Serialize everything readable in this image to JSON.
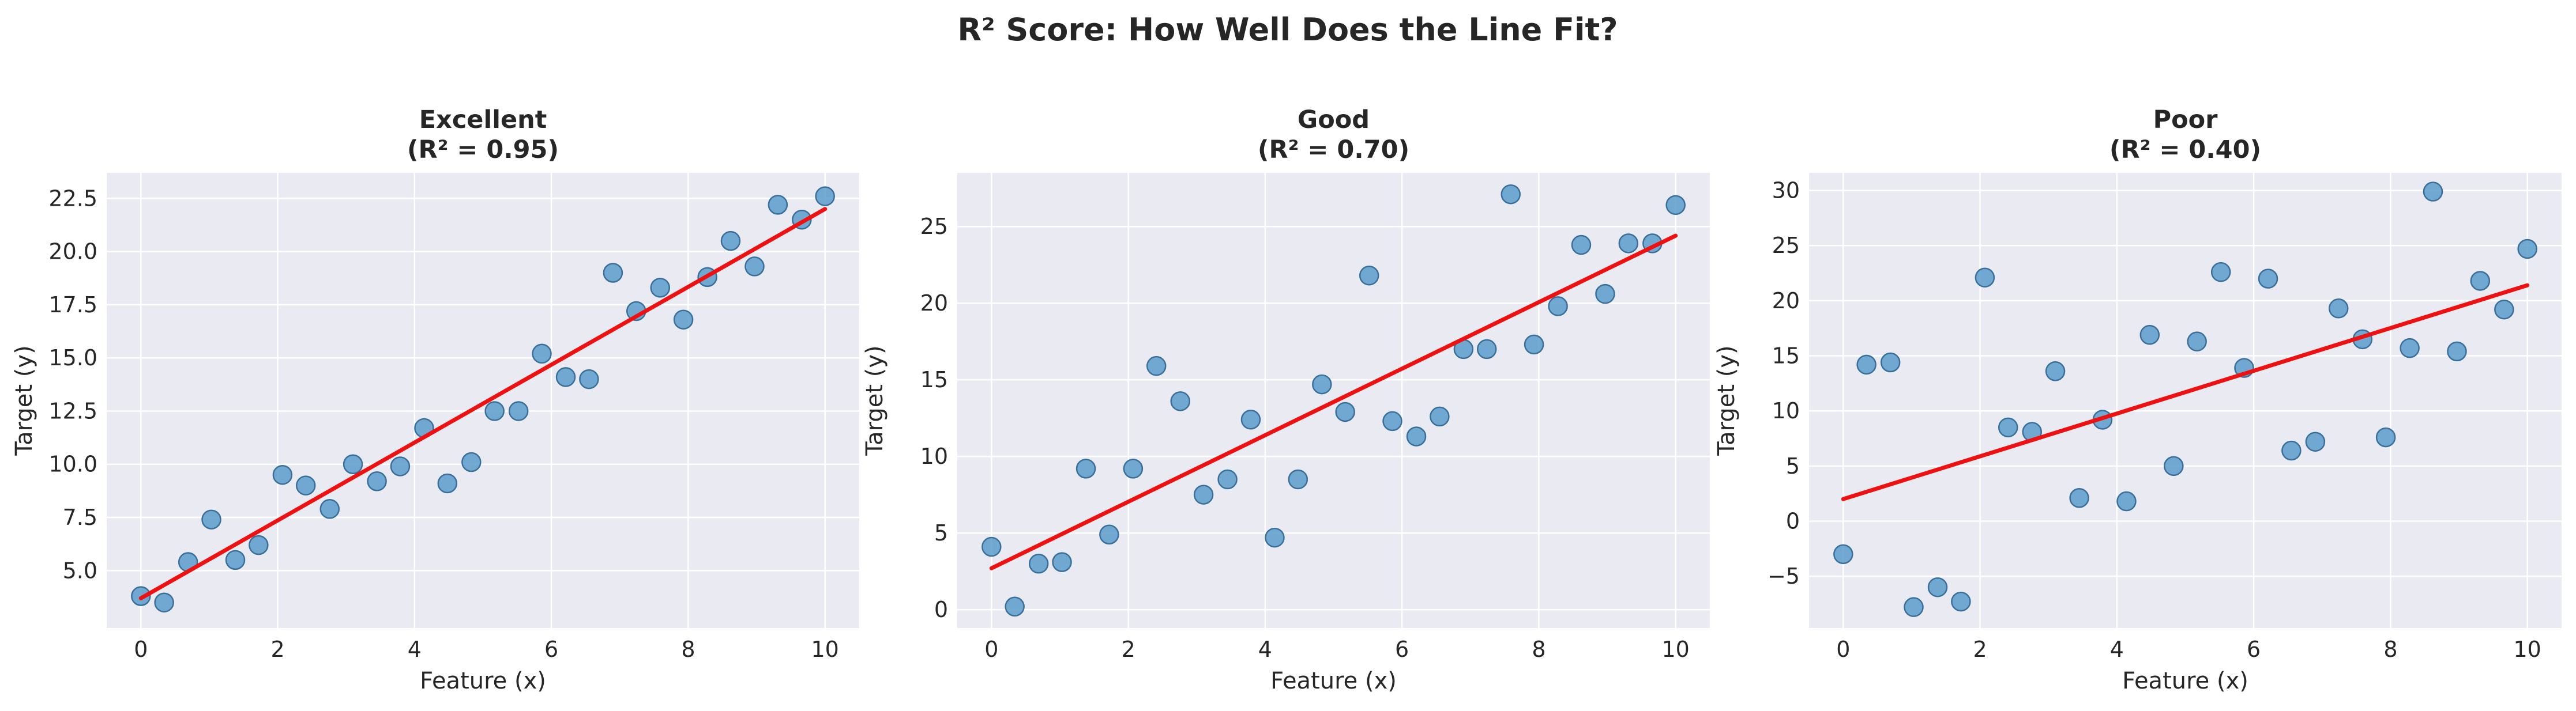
{
  "figure": {
    "suptitle": "R² Score: How Well Does the Line Fit?",
    "colors": {
      "point": "#5b9ccb",
      "fit_line": "#ee1111",
      "plot_bg": "#eaeaf2"
    }
  },
  "chart_data": [
    {
      "type": "scatter",
      "title_line1": "Excellent",
      "title_line2": "(R² = 0.95)",
      "xlabel": "Feature (x)",
      "ylabel": "Target (y)",
      "xlim": [
        -0.5,
        10.5
      ],
      "ylim": [
        2.3,
        23.7
      ],
      "xticks": [
        0,
        2,
        4,
        6,
        8,
        10
      ],
      "yticks": [
        5.0,
        7.5,
        10.0,
        12.5,
        15.0,
        17.5,
        20.0,
        22.5
      ],
      "ytick_labels": [
        "5.0",
        "7.5",
        "10.0",
        "12.5",
        "15.0",
        "17.5",
        "20.0",
        "22.5"
      ],
      "grid": true,
      "points": {
        "x": [
          0,
          0.34,
          0.69,
          1.03,
          1.38,
          1.72,
          2.07,
          2.41,
          2.76,
          3.1,
          3.45,
          3.79,
          4.14,
          4.48,
          4.83,
          5.17,
          5.52,
          5.86,
          6.21,
          6.55,
          6.9,
          7.24,
          7.59,
          7.93,
          8.28,
          8.62,
          8.97,
          9.31,
          9.66,
          10.0
        ],
        "y": [
          3.8,
          3.5,
          5.4,
          7.4,
          5.5,
          6.2,
          9.5,
          9.0,
          7.9,
          10.0,
          9.2,
          9.9,
          11.7,
          9.1,
          10.1,
          12.5,
          12.5,
          15.2,
          14.1,
          14.0,
          19.0,
          17.2,
          18.3,
          16.8,
          18.8,
          20.5,
          19.3,
          22.2,
          21.5,
          22.6
        ]
      },
      "fit_line": {
        "x": [
          0,
          10
        ],
        "y": [
          3.7,
          22.0
        ]
      }
    },
    {
      "type": "scatter",
      "title_line1": "Good",
      "title_line2": "(R² = 0.70)",
      "xlabel": "Feature (x)",
      "ylabel": "Target (y)",
      "xlim": [
        -0.5,
        10.5
      ],
      "ylim": [
        -1.2,
        28.5
      ],
      "xticks": [
        0,
        2,
        4,
        6,
        8,
        10
      ],
      "yticks": [
        0,
        5,
        10,
        15,
        20,
        25
      ],
      "ytick_labels": [
        "0",
        "5",
        "10",
        "15",
        "20",
        "25"
      ],
      "grid": true,
      "points": {
        "x": [
          0,
          0.34,
          0.69,
          1.03,
          1.38,
          1.72,
          2.07,
          2.41,
          2.76,
          3.1,
          3.45,
          3.79,
          4.14,
          4.48,
          4.83,
          5.17,
          5.52,
          5.86,
          6.21,
          6.55,
          6.9,
          7.24,
          7.59,
          7.93,
          8.28,
          8.62,
          8.97,
          9.31,
          9.66,
          10.0
        ],
        "y": [
          4.1,
          0.2,
          3.0,
          3.1,
          9.2,
          4.9,
          9.2,
          15.9,
          13.6,
          7.5,
          8.5,
          12.4,
          4.7,
          8.5,
          14.7,
          12.9,
          21.8,
          12.3,
          11.3,
          12.6,
          17.0,
          17.0,
          27.1,
          17.3,
          19.8,
          23.8,
          20.6,
          23.9,
          23.9,
          26.4
        ]
      },
      "fit_line": {
        "x": [
          0,
          10
        ],
        "y": [
          2.7,
          24.4
        ]
      }
    },
    {
      "type": "scatter",
      "title_line1": "Poor",
      "title_line2": "(R² = 0.40)",
      "xlabel": "Feature (x)",
      "ylabel": "Target (y)",
      "xlim": [
        -0.5,
        10.5
      ],
      "ylim": [
        -9.7,
        31.6
      ],
      "xticks": [
        0,
        2,
        4,
        6,
        8,
        10
      ],
      "yticks": [
        -5,
        0,
        5,
        10,
        15,
        20,
        25,
        30
      ],
      "ytick_labels": [
        "−5",
        "0",
        "5",
        "10",
        "15",
        "20",
        "25",
        "30"
      ],
      "grid": true,
      "points": {
        "x": [
          0,
          0.34,
          0.69,
          1.03,
          1.38,
          1.72,
          2.07,
          2.41,
          2.76,
          3.1,
          3.45,
          3.79,
          4.14,
          4.48,
          4.83,
          5.17,
          5.52,
          5.86,
          6.21,
          6.55,
          6.9,
          7.24,
          7.59,
          7.93,
          8.28,
          8.62,
          8.97,
          9.31,
          9.66,
          10.0
        ],
        "y": [
          -3.0,
          14.2,
          14.4,
          -7.8,
          -6.0,
          -7.3,
          22.1,
          8.5,
          8.1,
          13.6,
          2.1,
          9.2,
          1.8,
          16.9,
          5.0,
          16.3,
          22.6,
          13.9,
          22.0,
          6.4,
          7.2,
          19.3,
          16.5,
          7.6,
          15.7,
          29.9,
          15.4,
          21.8,
          19.2,
          24.7
        ]
      },
      "fit_line": {
        "x": [
          0,
          10
        ],
        "y": [
          2.0,
          21.4
        ]
      }
    }
  ]
}
